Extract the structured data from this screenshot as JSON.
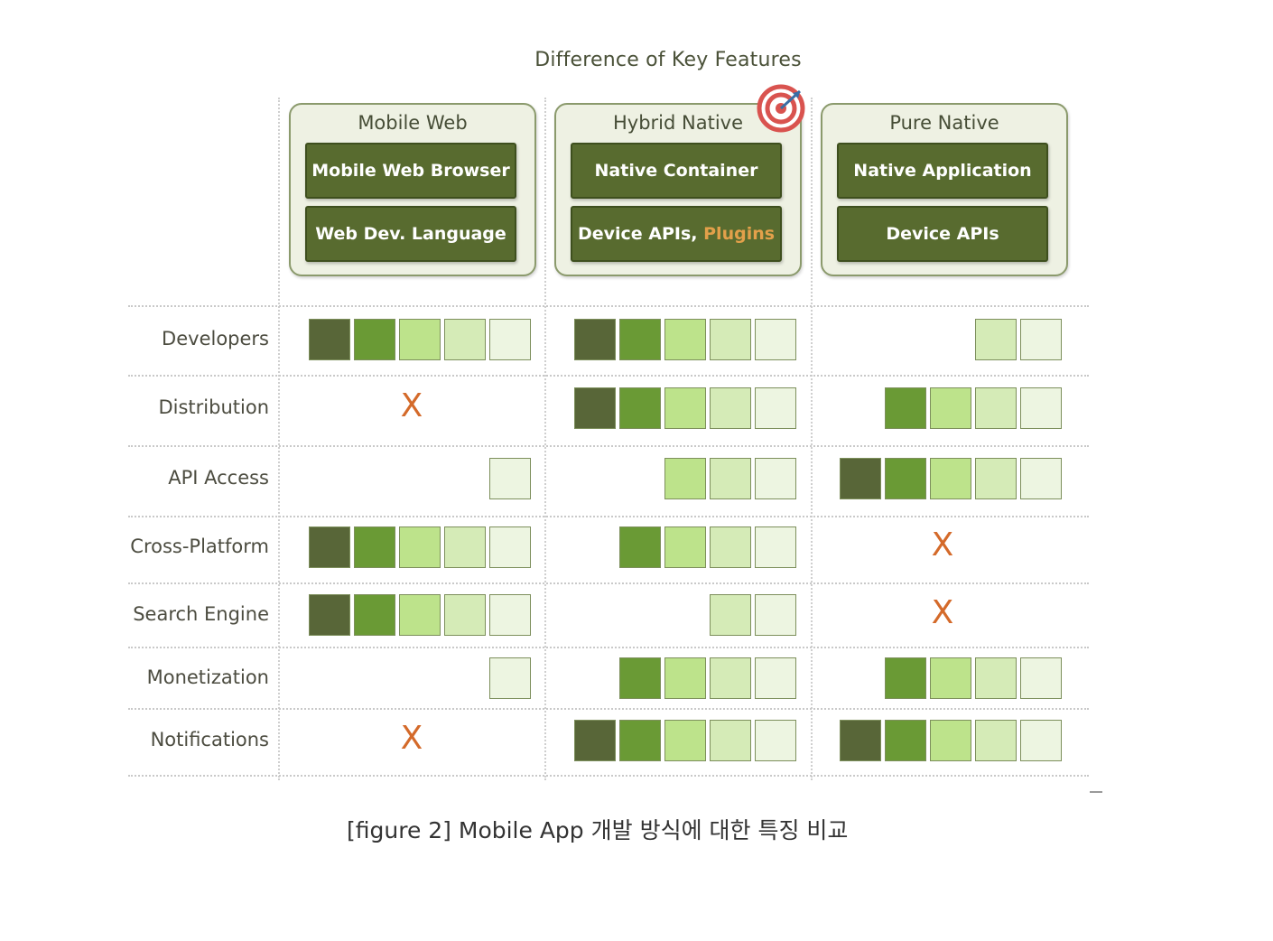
{
  "title": "Difference of Key Features",
  "columns": [
    {
      "name": "Mobile Web",
      "top_layer": "Mobile Web Browser",
      "bottom_layer": "Web Dev. Language"
    },
    {
      "name": "Hybrid Native",
      "top_layer": "Native Container",
      "bottom_layer": "Device APIs,",
      "bottom_layer_highlight": "Plugins",
      "highlighted": true
    },
    {
      "name": "Pure Native",
      "top_layer": "Native Application",
      "bottom_layer": "Device APIs"
    }
  ],
  "rows": [
    {
      "label": "Developers",
      "ratings": [
        5,
        5,
        2
      ]
    },
    {
      "label": "Distribution",
      "ratings": [
        0,
        5,
        4
      ]
    },
    {
      "label": "API Access",
      "ratings": [
        1,
        3,
        5
      ]
    },
    {
      "label": "Cross-Platform",
      "ratings": [
        5,
        4,
        0
      ]
    },
    {
      "label": "Search Engine",
      "ratings": [
        5,
        2,
        0
      ]
    },
    {
      "label": "Monetization",
      "ratings": [
        1,
        4,
        4
      ]
    },
    {
      "label": "Notifications",
      "ratings": [
        0,
        5,
        5
      ]
    }
  ],
  "rating_scale_note": "",
  "none_mark": "X",
  "level_colors": {
    "5": "#586638",
    "4": "#6a9a35",
    "3": "#bde38b",
    "2": "#d5ebb7",
    "1": "#edf5e1"
  },
  "accent_colors": {
    "x_mark": "#d46a2a",
    "plugins_text": "#e3a04a",
    "panel_border": "#8b9a6c"
  },
  "icons": {
    "highlight_icon": "target-icon"
  },
  "caption": "[figure 2] Mobile App 개발 방식에 대한 특징 비교"
}
